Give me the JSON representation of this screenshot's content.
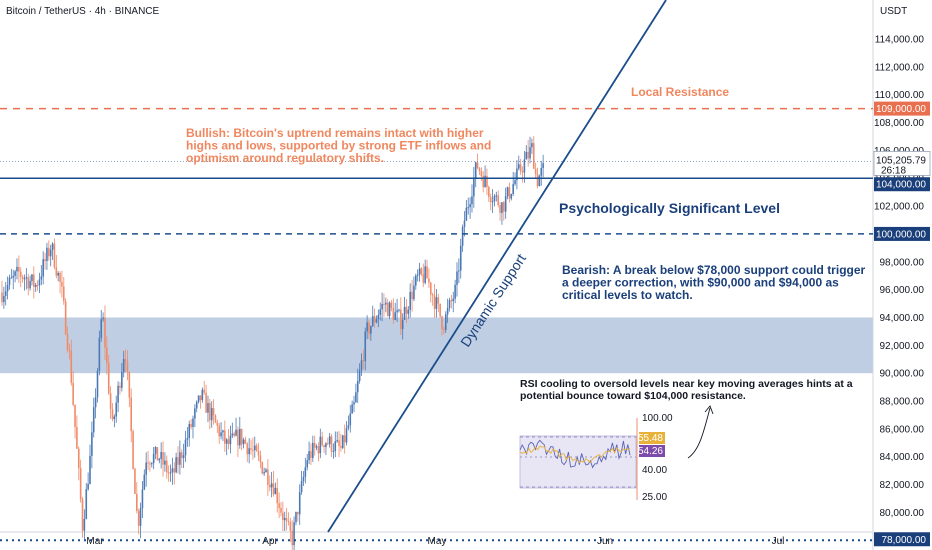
{
  "header": {
    "title": "Bitcoin / TetherUS · 4h · BINANCE",
    "currency": "USDT"
  },
  "colors": {
    "up": "#4a78b5",
    "down": "#f08a68",
    "resistance": "#e8704f",
    "support": "#1a4d8c",
    "zone": "#bccbe0",
    "tag_blue": "#1a3f7a",
    "tag_red": "#e8704f"
  },
  "chart_data": {
    "type": "candlestick",
    "x_ticks": [
      "Mar",
      "Apr",
      "May",
      "Jun",
      "Jul"
    ],
    "y_ticks": [
      "80,000.00",
      "82,000.00",
      "84,000.00",
      "86,000.00",
      "88,000.00",
      "90,000.00",
      "92,000.00",
      "94,000.00",
      "96,000.00",
      "98,000.00",
      "100,000.00",
      "102,000.00",
      "104,000.00",
      "106,000.00",
      "108,000.00",
      "110,000.00",
      "112,000.00",
      "114,000.00"
    ],
    "ylim": [
      77300,
      116800
    ],
    "path_points": [
      [
        0,
        95800
      ],
      [
        0.02,
        97200
      ],
      [
        0.04,
        96300
      ],
      [
        0.058,
        99200
      ],
      [
        0.07,
        96000
      ],
      [
        0.08,
        91000
      ],
      [
        0.095,
        79000
      ],
      [
        0.105,
        84500
      ],
      [
        0.118,
        94500
      ],
      [
        0.13,
        86000
      ],
      [
        0.145,
        92000
      ],
      [
        0.16,
        79000
      ],
      [
        0.17,
        84000
      ],
      [
        0.185,
        84000
      ],
      [
        0.2,
        82500
      ],
      [
        0.215,
        84800
      ],
      [
        0.235,
        88400
      ],
      [
        0.25,
        86500
      ],
      [
        0.265,
        84800
      ],
      [
        0.28,
        85500
      ],
      [
        0.3,
        84000
      ],
      [
        0.32,
        82000
      ],
      [
        0.335,
        79000
      ],
      [
        0.342,
        78100
      ],
      [
        0.36,
        84000
      ],
      [
        0.38,
        85200
      ],
      [
        0.4,
        84500
      ],
      [
        0.415,
        87600
      ],
      [
        0.43,
        93000
      ],
      [
        0.45,
        95000
      ],
      [
        0.47,
        93800
      ],
      [
        0.49,
        96800
      ],
      [
        0.5,
        97000
      ],
      [
        0.52,
        93500
      ],
      [
        0.535,
        96000
      ],
      [
        0.545,
        101000
      ],
      [
        0.56,
        105000
      ],
      [
        0.575,
        103000
      ],
      [
        0.59,
        102000
      ],
      [
        0.61,
        104500
      ],
      [
        0.625,
        106200
      ],
      [
        0.63,
        103800
      ],
      [
        0.64,
        104800
      ]
    ],
    "resistance": {
      "label": "Local Resistance",
      "price": 109000,
      "price_label": "109,000.00"
    },
    "current": {
      "price_label": "105,205.79",
      "countdown": "26:18"
    },
    "support_level": {
      "label": "Psychologically Significant Level",
      "price": 104000,
      "price_label": "104,000.00"
    },
    "dashed_level": {
      "price": 100000,
      "price_label": "100,000.00"
    },
    "bottom_level": {
      "price": 78000,
      "price_label": "78,000.00"
    },
    "zone": {
      "from": 90000,
      "to": 94000
    },
    "trendline_label": "Dynamic Support",
    "bullish_lines": [
      "Bullish: Bitcoin's uptrend remains intact with higher",
      "highs and lows, supported by strong ETF inflows and",
      "optimism around regulatory shifts."
    ],
    "bearish_lines": [
      "Bearish: A break below $78,000 support could trigger",
      "a deeper correction, with $90,000 and $94,000 as",
      "critical levels to watch."
    ],
    "rsi_lines": [
      "RSI cooling to oversold levels near key moving averages hints at a",
      "potential bounce toward $104,000 resistance."
    ],
    "rsi_inset": {
      "upper": "100.00",
      "v1": "55.48",
      "v2": "54.26",
      "mid": "40.00",
      "low": "25.00"
    }
  }
}
